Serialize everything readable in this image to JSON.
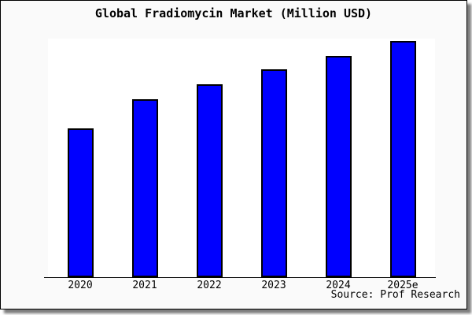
{
  "chart_data": {
    "type": "bar",
    "title": "Global Fradiomycin Market (Million USD)",
    "categories": [
      "2020",
      "2021",
      "2022",
      "2023",
      "2024",
      "2025e"
    ],
    "values": [
      189,
      226,
      245,
      264,
      281,
      300
    ],
    "values_note": "no y-axis ticks or gridlines are shown; values are relative bar heights estimated in screen pixels",
    "xlabel": "",
    "ylabel": "",
    "ylim": [
      0,
      303
    ],
    "grid": false,
    "legend": false,
    "bar_color": "#0000ff",
    "bar_border_color": "#000000"
  },
  "source": {
    "text": "Source: Prof Research"
  },
  "colors": {
    "panel_background": "#fafafa",
    "plot_background": "#ffffff",
    "axis": "#000000",
    "text": "#000000",
    "frame_border": "#000000",
    "shadow": "#7d7d7d"
  }
}
